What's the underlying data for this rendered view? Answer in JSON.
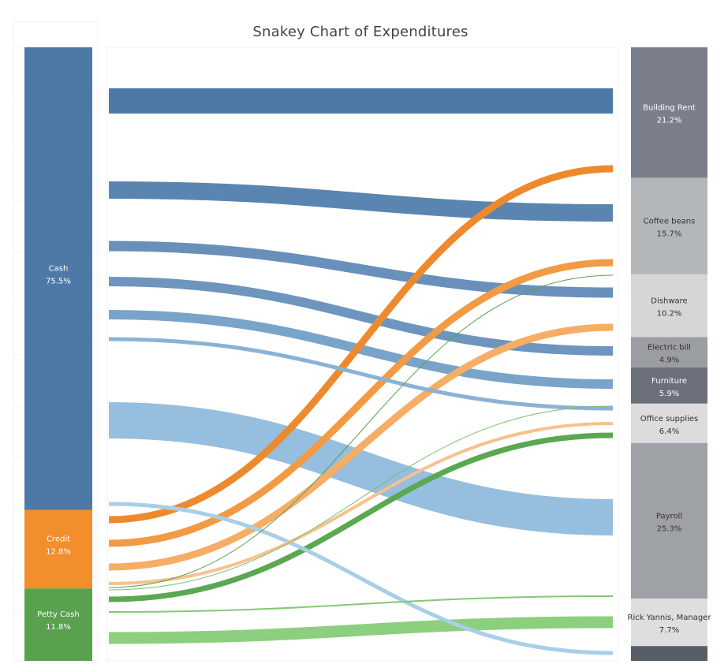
{
  "chart_data": {
    "type": "sankey",
    "title": "Snakey Chart of Expenditures",
    "sources": [
      {
        "name": "Cash",
        "percent": "75.5%",
        "share": 0.755,
        "color": "#4e79a7"
      },
      {
        "name": "Credit",
        "percent": "12.8%",
        "share": 0.128,
        "color": "#f28e2b"
      },
      {
        "name": "Petty Cash",
        "percent": "11.8%",
        "share": 0.118,
        "color": "#59a14f"
      }
    ],
    "targets": [
      {
        "name": "Building Rent",
        "percent": "21.2%",
        "share": 0.212,
        "color": "#7b7f8c",
        "text": "light"
      },
      {
        "name": "Coffee beans",
        "percent": "15.7%",
        "share": 0.157,
        "color": "#b4b7b9",
        "text": "dark"
      },
      {
        "name": "Dishware",
        "percent": "10.2%",
        "share": 0.102,
        "color": "#d6d6d6",
        "text": "dark"
      },
      {
        "name": "Electric bill",
        "percent": "4.9%",
        "share": 0.049,
        "color": "#9a9da2",
        "text": "dark"
      },
      {
        "name": "Furniture",
        "percent": "5.9%",
        "share": 0.059,
        "color": "#6c707b",
        "text": "light"
      },
      {
        "name": "Office supplies",
        "percent": "6.4%",
        "share": 0.064,
        "color": "#dcdcdc",
        "text": "dark"
      },
      {
        "name": "Payroll",
        "percent": "25.3%",
        "share": 0.253,
        "color": "#9ea1a6",
        "text": "dark"
      },
      {
        "name": "Rick Yannis, Manager",
        "percent": "7.7%",
        "share": 0.077,
        "color": "#dedede",
        "text": "dark"
      },
      {
        "name": "",
        "percent": "",
        "share": 0.024,
        "color": "#585c66",
        "text": "light"
      }
    ],
    "flows": [
      {
        "source": "Cash",
        "target": "Building Rent",
        "color": "#4e79a7"
      },
      {
        "source": "Cash",
        "target": "Coffee beans",
        "color": "#5a85b1"
      },
      {
        "source": "Cash",
        "target": "Dishware",
        "color": "#6890ba"
      },
      {
        "source": "Cash",
        "target": "Electric bill",
        "color": "#6e95bd"
      },
      {
        "source": "Cash",
        "target": "Furniture",
        "color": "#7aa3c9"
      },
      {
        "source": "Cash",
        "target": "Office supplies",
        "color": "#8bb2d6"
      },
      {
        "source": "Cash",
        "target": "Payroll",
        "color": "#95bedf"
      },
      {
        "source": "Cash",
        "target": "Rick Yannis, Manager",
        "color": "#a9cfe8"
      },
      {
        "source": "Credit",
        "target": "Coffee beans",
        "color": "#ee8a2e"
      },
      {
        "source": "Credit",
        "target": "Dishware",
        "color": "#f29a44"
      },
      {
        "source": "Credit",
        "target": "Electric bill",
        "color": "#f6ad66"
      },
      {
        "source": "Credit",
        "target": "Office supplies",
        "color": "#f8c18d"
      },
      {
        "source": "Petty Cash",
        "target": "Dishware",
        "color": "#58a350"
      },
      {
        "source": "Petty Cash",
        "target": "Furniture",
        "color": "#7bbf6e"
      },
      {
        "source": "Petty Cash",
        "target": "Office supplies",
        "color": "#5aa852"
      },
      {
        "source": "Petty Cash",
        "target": "Rick Yannis, Manager",
        "color": "#84c877"
      },
      {
        "source": "Petty Cash",
        "target": "Rick Yannis, Manager",
        "color": "#8ccf7e"
      }
    ]
  }
}
